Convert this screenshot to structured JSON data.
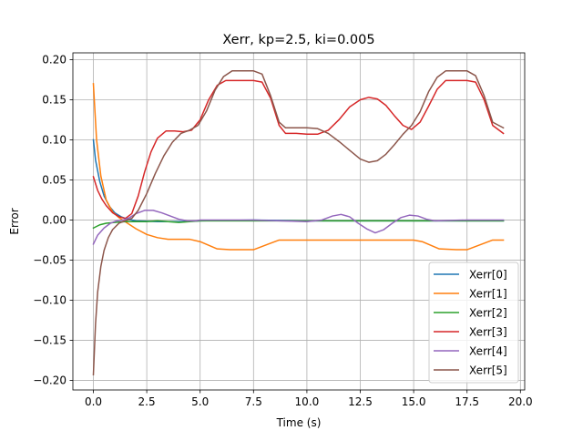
{
  "chart_data": {
    "type": "line",
    "title": "Xerr, kp=2.5, ki=0.005",
    "xlabel": "Time (s)",
    "ylabel": "Error",
    "xlim": [
      -0.96,
      20.2
    ],
    "ylim": [
      -0.212,
      0.2085
    ],
    "xticks": [
      0.0,
      2.5,
      5.0,
      7.5,
      10.0,
      12.5,
      15.0,
      17.5,
      20.0
    ],
    "xtick_labels": [
      "0.0",
      "2.5",
      "5.0",
      "7.5",
      "10.0",
      "12.5",
      "15.0",
      "17.5",
      "20.0"
    ],
    "yticks": [
      -0.2,
      -0.15,
      -0.1,
      -0.05,
      0.0,
      0.05,
      0.1,
      0.15,
      0.2
    ],
    "ytick_labels": [
      "−0.20",
      "−0.15",
      "−0.10",
      "−0.05",
      "0.00",
      "0.05",
      "0.10",
      "0.15",
      "0.20"
    ],
    "grid": true,
    "legend_position": "lower-right",
    "series": [
      {
        "name": "Xerr[0]",
        "color": "#1f77b4",
        "x": [
          0.0,
          0.1,
          0.3,
          0.5,
          0.75,
          1.0,
          1.3,
          1.6,
          2.0,
          3.0,
          4.0,
          5.0,
          7.5,
          10.0,
          12.5,
          15.0,
          17.5,
          19.2
        ],
        "y": [
          0.1,
          0.075,
          0.048,
          0.03,
          0.017,
          0.009,
          0.004,
          0.001,
          -0.001,
          -0.002,
          -0.002,
          -0.001,
          0.0,
          -0.001,
          -0.001,
          -0.001,
          -0.001,
          -0.001
        ]
      },
      {
        "name": "Xerr[1]",
        "color": "#ff7f0e",
        "x": [
          0.0,
          0.15,
          0.35,
          0.6,
          0.9,
          1.2,
          1.6,
          2.0,
          2.5,
          3.0,
          3.5,
          4.0,
          4.5,
          5.0,
          5.8,
          6.4,
          7.0,
          7.5,
          8.2,
          8.7,
          9.0,
          10.0,
          11.0,
          12.0,
          13.0,
          14.0,
          15.0,
          15.4,
          16.2,
          17.0,
          17.5,
          18.7,
          19.2
        ],
        "y": [
          0.17,
          0.1,
          0.055,
          0.025,
          0.01,
          0.003,
          -0.004,
          -0.011,
          -0.018,
          -0.022,
          -0.024,
          -0.024,
          -0.024,
          -0.027,
          -0.036,
          -0.037,
          -0.037,
          -0.037,
          -0.03,
          -0.025,
          -0.025,
          -0.025,
          -0.025,
          -0.025,
          -0.025,
          -0.025,
          -0.025,
          -0.027,
          -0.036,
          -0.037,
          -0.037,
          -0.025,
          -0.025
        ]
      },
      {
        "name": "Xerr[2]",
        "color": "#2ca02c",
        "x": [
          0.0,
          0.3,
          0.6,
          1.0,
          1.5,
          2.0,
          2.5,
          3.0,
          3.5,
          4.0,
          4.5,
          5.0,
          7.5,
          10.0,
          12.5,
          15.0,
          17.5,
          19.2
        ],
        "y": [
          -0.01,
          -0.006,
          -0.004,
          -0.003,
          -0.002,
          -0.002,
          -0.002,
          -0.001,
          -0.002,
          -0.003,
          -0.002,
          -0.001,
          -0.001,
          -0.001,
          -0.001,
          -0.001,
          -0.001,
          -0.001
        ]
      },
      {
        "name": "Xerr[3]",
        "color": "#d62728",
        "x": [
          0.0,
          0.2,
          0.4,
          0.6,
          0.9,
          1.2,
          1.5,
          1.8,
          2.1,
          2.4,
          2.7,
          3.0,
          3.4,
          3.8,
          4.2,
          4.6,
          5.0,
          5.4,
          5.8,
          6.2,
          6.6,
          7.0,
          7.5,
          7.9,
          8.3,
          8.7,
          9.0,
          9.5,
          10.0,
          10.5,
          11.0,
          11.5,
          12.0,
          12.5,
          12.9,
          13.3,
          13.7,
          14.1,
          14.5,
          14.9,
          15.3,
          15.7,
          16.1,
          16.5,
          17.0,
          17.5,
          17.9,
          18.3,
          18.7,
          19.2
        ],
        "y": [
          0.054,
          0.037,
          0.026,
          0.018,
          0.009,
          0.004,
          0.002,
          0.008,
          0.03,
          0.06,
          0.085,
          0.102,
          0.111,
          0.111,
          0.11,
          0.112,
          0.125,
          0.15,
          0.168,
          0.174,
          0.174,
          0.174,
          0.174,
          0.172,
          0.152,
          0.118,
          0.108,
          0.108,
          0.107,
          0.107,
          0.112,
          0.125,
          0.141,
          0.15,
          0.153,
          0.151,
          0.143,
          0.13,
          0.118,
          0.113,
          0.122,
          0.142,
          0.163,
          0.174,
          0.174,
          0.174,
          0.172,
          0.15,
          0.118,
          0.108
        ]
      },
      {
        "name": "Xerr[4]",
        "color": "#9467bd",
        "x": [
          0.0,
          0.2,
          0.5,
          0.8,
          1.1,
          1.4,
          1.7,
          2.0,
          2.4,
          2.8,
          3.2,
          3.6,
          4.0,
          4.4,
          4.8,
          5.0,
          7.5,
          10.0,
          10.7,
          11.2,
          11.6,
          12.0,
          12.4,
          12.8,
          13.2,
          13.6,
          14.0,
          14.4,
          14.8,
          15.2,
          15.6,
          16.0,
          17.5,
          19.2
        ],
        "y": [
          -0.03,
          -0.019,
          -0.01,
          -0.004,
          -0.001,
          0.0,
          0.003,
          0.008,
          0.012,
          0.012,
          0.009,
          0.005,
          0.001,
          -0.001,
          -0.001,
          0.0,
          0.0,
          -0.002,
          0.0,
          0.005,
          0.007,
          0.004,
          -0.004,
          -0.011,
          -0.016,
          -0.012,
          -0.004,
          0.003,
          0.006,
          0.005,
          0.001,
          -0.001,
          0.0,
          0.0
        ]
      },
      {
        "name": "Xerr[5]",
        "color": "#8c564b",
        "x": [
          0.0,
          0.1,
          0.2,
          0.35,
          0.5,
          0.7,
          0.9,
          1.2,
          1.5,
          1.8,
          2.1,
          2.5,
          2.9,
          3.3,
          3.7,
          4.1,
          4.5,
          4.9,
          5.3,
          5.7,
          6.1,
          6.5,
          7.0,
          7.5,
          7.9,
          8.3,
          8.7,
          9.0,
          9.5,
          10.0,
          10.5,
          11.0,
          11.5,
          12.0,
          12.5,
          12.9,
          13.3,
          13.7,
          14.1,
          14.5,
          14.9,
          15.3,
          15.7,
          16.1,
          16.5,
          17.0,
          17.5,
          17.9,
          18.3,
          18.7,
          19.2
        ],
        "y": [
          -0.193,
          -0.13,
          -0.09,
          -0.058,
          -0.038,
          -0.022,
          -0.012,
          -0.004,
          -0.001,
          0.002,
          0.012,
          0.033,
          0.058,
          0.08,
          0.097,
          0.108,
          0.112,
          0.118,
          0.136,
          0.162,
          0.179,
          0.186,
          0.186,
          0.186,
          0.182,
          0.155,
          0.122,
          0.115,
          0.115,
          0.115,
          0.114,
          0.108,
          0.098,
          0.087,
          0.076,
          0.072,
          0.074,
          0.082,
          0.094,
          0.107,
          0.118,
          0.135,
          0.16,
          0.178,
          0.186,
          0.186,
          0.186,
          0.18,
          0.155,
          0.122,
          0.115
        ]
      }
    ]
  }
}
